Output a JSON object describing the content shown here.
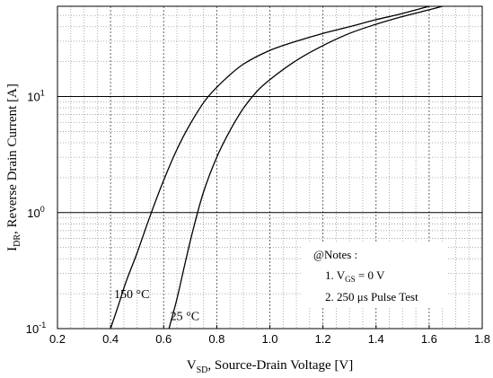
{
  "chart_data": {
    "type": "line",
    "xlabel": {
      "main": "V",
      "sub": "SD",
      "rest": ", Source-Drain Voltage  [V]"
    },
    "ylabel": {
      "main": "I",
      "sub": "DR",
      "rest": ", Reverse Drain Current  [A]"
    },
    "xlim": [
      0.2,
      1.8
    ],
    "ylim": [
      0.1,
      60
    ],
    "yscale": "log",
    "grid": true,
    "x_ticks": [
      0.2,
      0.4,
      0.6,
      0.8,
      1.0,
      1.2,
      1.4,
      1.6,
      1.8
    ],
    "x_tick_labels": [
      "0.2",
      "0.4",
      "0.6",
      "0.8",
      "1.0",
      "1.2",
      "1.4",
      "1.6",
      "1.8"
    ],
    "y_ticks": [
      {
        "value": 0.1,
        "base": "10",
        "exp": "-1"
      },
      {
        "value": 1,
        "base": "10",
        "exp": "0"
      },
      {
        "value": 10,
        "base": "10",
        "exp": "1"
      }
    ],
    "series": [
      {
        "name": "150 °C",
        "x": [
          0.4,
          0.43,
          0.46,
          0.5,
          0.55,
          0.6,
          0.65,
          0.7,
          0.76,
          0.83,
          0.9,
          1.0,
          1.1,
          1.2,
          1.3,
          1.4,
          1.5,
          1.6
        ],
        "y": [
          0.1,
          0.16,
          0.26,
          0.45,
          0.95,
          1.9,
          3.5,
          5.8,
          9.5,
          14,
          19,
          25,
          30,
          35,
          40,
          46,
          52,
          60
        ]
      },
      {
        "name": "25 °C",
        "x": [
          0.62,
          0.65,
          0.68,
          0.71,
          0.75,
          0.8,
          0.85,
          0.9,
          0.95,
          1.0,
          1.1,
          1.2,
          1.3,
          1.4,
          1.5,
          1.6,
          1.65
        ],
        "y": [
          0.1,
          0.18,
          0.36,
          0.7,
          1.5,
          3.0,
          5.1,
          7.9,
          11,
          14,
          20.5,
          27.5,
          35,
          42,
          49,
          56,
          60
        ]
      }
    ],
    "curve_labels": [
      {
        "series": 0,
        "text": "150 °C",
        "x": 0.48,
        "y": 0.2
      },
      {
        "series": 1,
        "text": "25 °C",
        "x": 0.68,
        "y": 0.13
      }
    ],
    "notes": {
      "title": "@Notes :",
      "line1": {
        "prefix": "1. V",
        "sub": "GS",
        "suffix": " = 0 V"
      },
      "line2": "2. 250 μs Pulse Test"
    }
  }
}
